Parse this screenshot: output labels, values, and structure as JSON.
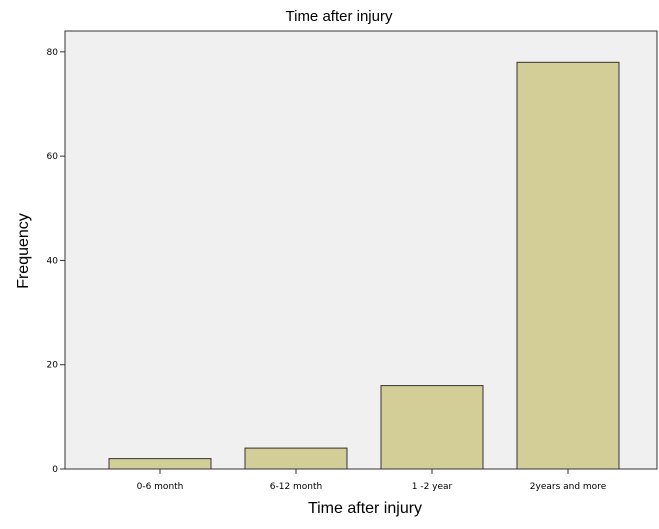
{
  "chart_data": {
    "type": "bar",
    "title": "Time after injury",
    "xlabel": "Time after injury",
    "ylabel": "Frequency",
    "categories": [
      "0-6 month",
      "6-12 month",
      "1 -2 year",
      "2years and more"
    ],
    "values": [
      2,
      4,
      16,
      78
    ],
    "ylim": [
      0,
      84
    ],
    "yticks": [
      0,
      20,
      40,
      60,
      80
    ],
    "grid": false,
    "colors": {
      "bar_fill": "#d3ce98",
      "bar_stroke": "#333333",
      "plot_background": "#f0f0f0",
      "axis": "#333333"
    }
  }
}
